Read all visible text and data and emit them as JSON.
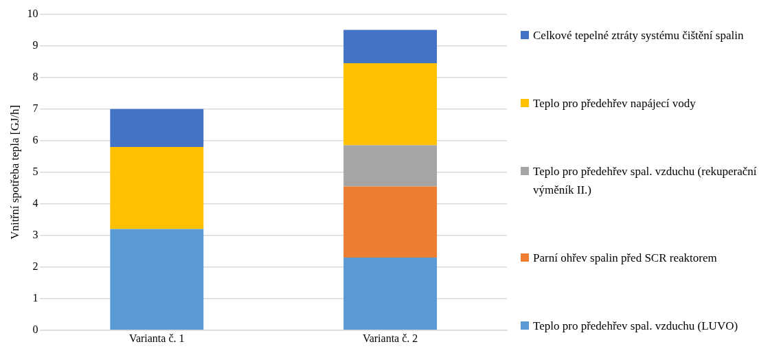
{
  "chart_data": {
    "type": "bar",
    "stacked": true,
    "ylabel": "Vnitřní spotřeba tepla [GJ/h]",
    "categories": [
      "Varianta č. 1",
      "Varianta č. 2"
    ],
    "series": [
      {
        "name": "Teplo pro předehřev spal. vzduchu (LUVO)",
        "color": "#5b9bd5",
        "values": [
          3.2,
          2.3
        ]
      },
      {
        "name": "Parní ohřev spalin před SCR reaktorem",
        "color": "#ed7d31",
        "values": [
          0,
          2.25
        ]
      },
      {
        "name": "Teplo pro předehřev spal. vzduchu (rekuperační výměník II.)",
        "color": "#a5a5a5",
        "values": [
          0,
          1.3
        ]
      },
      {
        "name": "Teplo pro předehřev napájecí vody",
        "color": "#ffc000",
        "values": [
          2.6,
          2.6
        ]
      },
      {
        "name": "Celkové tepelné ztráty systému čištění spalin",
        "color": "#4472c4",
        "values": [
          1.2,
          1.05
        ]
      }
    ],
    "ylim": [
      0,
      10
    ],
    "yticks": [
      0,
      1,
      2,
      3,
      4,
      5,
      6,
      7,
      8,
      9,
      10
    ],
    "grid": "y",
    "legend": "right"
  }
}
